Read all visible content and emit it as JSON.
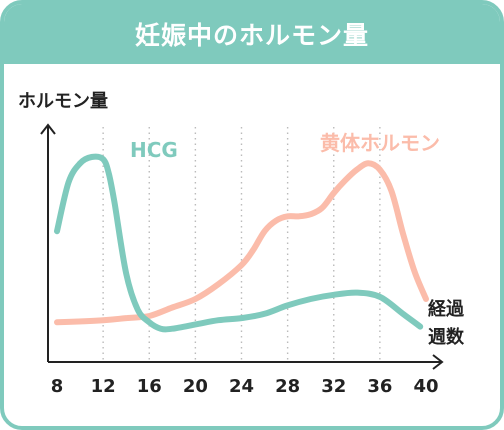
{
  "title": "妊娠中のホルモン量",
  "colors": {
    "teal": "#7fcabd",
    "salmon": "#fbbcaa",
    "axis": "#222222",
    "grid": "#bbbbbb"
  },
  "chart_data": {
    "type": "line",
    "title": "妊娠中のホルモン量",
    "ylabel": "ホルモン量",
    "xlabel_lines": [
      "経過",
      "週数"
    ],
    "xlim": [
      8,
      40
    ],
    "ylim": [
      0,
      100
    ],
    "ticks": [
      8,
      12,
      16,
      20,
      24,
      28,
      32,
      36,
      40
    ],
    "grid": "vertical dotted",
    "series": [
      {
        "name": "HCG",
        "color": "#7fcabd",
        "x": [
          8,
          9,
          10,
          11,
          12,
          12.5,
          13,
          14,
          15,
          16,
          17,
          18,
          20,
          22,
          24,
          26,
          28,
          30,
          32,
          34,
          36,
          38,
          39.5
        ],
        "y": [
          57,
          80,
          89,
          92,
          91,
          84,
          70,
          37,
          20,
          14,
          11,
          11,
          13,
          15,
          16,
          18,
          22,
          25,
          27,
          28,
          26,
          18,
          12
        ]
      },
      {
        "name": "黄体ホルモン",
        "color": "#fbbcaa",
        "x": [
          8,
          12,
          14,
          16,
          18,
          20,
          22,
          24,
          25,
          26,
          27,
          28,
          29,
          30,
          31,
          32,
          33,
          34,
          35,
          36,
          37,
          38,
          39,
          40
        ],
        "y": [
          14,
          15,
          16,
          17,
          21,
          25,
          32,
          41,
          48,
          57,
          62,
          64,
          64,
          65,
          68,
          75,
          81,
          86,
          89,
          86,
          76,
          56,
          38,
          25
        ]
      }
    ]
  }
}
